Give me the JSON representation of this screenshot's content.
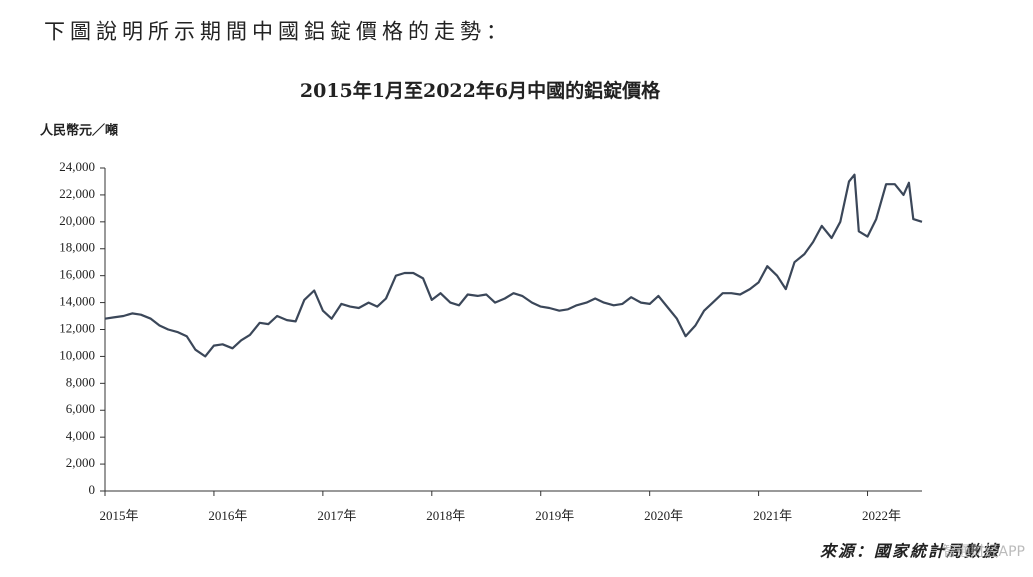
{
  "intro": "下圖說明所示期間中國鋁錠價格的走勢：",
  "watermark": "智通财经APP",
  "chart_data": {
    "type": "line",
    "title": "2015年1月至2022年6月中國的鋁錠價格",
    "y_label": "人民幣元／噸",
    "source": "來源：國家統計局數據",
    "xlim": [
      2015,
      2022.5
    ],
    "xticks": [
      {
        "value": 2015,
        "label": "2015年"
      },
      {
        "value": 2016,
        "label": "2016年"
      },
      {
        "value": 2017,
        "label": "2017年"
      },
      {
        "value": 2018,
        "label": "2018年"
      },
      {
        "value": 2019,
        "label": "2019年"
      },
      {
        "value": 2020,
        "label": "2020年"
      },
      {
        "value": 2021,
        "label": "2021年"
      },
      {
        "value": 2022,
        "label": "2022年"
      }
    ],
    "ylim": [
      0,
      24000
    ],
    "yticks": [
      0,
      {
        "value": 2000,
        "label": "2,000"
      },
      {
        "value": 4000,
        "label": "4,000"
      },
      {
        "value": 6000,
        "label": "6,000"
      },
      {
        "value": 8000,
        "label": "8,000"
      },
      {
        "value": 10000,
        "label": "10,000"
      },
      {
        "value": 12000,
        "label": "12,000"
      },
      {
        "value": 14000,
        "label": "14,000"
      },
      {
        "value": 16000,
        "label": "16,000"
      },
      {
        "value": 18000,
        "label": "18,000"
      },
      {
        "value": 20000,
        "label": "20,000"
      },
      {
        "value": 22000,
        "label": "22,000"
      },
      {
        "value": 24000,
        "label": "24,000"
      }
    ],
    "grid": false,
    "color": "#3b4759",
    "x": [
      2015.0,
      2015.08,
      2015.17,
      2015.25,
      2015.33,
      2015.42,
      2015.5,
      2015.58,
      2015.67,
      2015.75,
      2015.83,
      2015.92,
      2016.0,
      2016.08,
      2016.17,
      2016.25,
      2016.33,
      2016.42,
      2016.5,
      2016.58,
      2016.67,
      2016.75,
      2016.83,
      2016.92,
      2017.0,
      2017.08,
      2017.17,
      2017.25,
      2017.33,
      2017.42,
      2017.5,
      2017.58,
      2017.67,
      2017.75,
      2017.83,
      2017.92,
      2018.0,
      2018.08,
      2018.17,
      2018.25,
      2018.33,
      2018.42,
      2018.5,
      2018.58,
      2018.67,
      2018.75,
      2018.83,
      2018.92,
      2019.0,
      2019.08,
      2019.17,
      2019.25,
      2019.33,
      2019.42,
      2019.5,
      2019.58,
      2019.67,
      2019.75,
      2019.83,
      2019.92,
      2020.0,
      2020.08,
      2020.17,
      2020.25,
      2020.33,
      2020.42,
      2020.5,
      2020.58,
      2020.67,
      2020.75,
      2020.83,
      2020.92,
      2021.0,
      2021.08,
      2021.17,
      2021.25,
      2021.33,
      2021.42,
      2021.5,
      2021.58,
      2021.67,
      2021.75,
      2021.83,
      2021.88,
      2021.92,
      2022.0,
      2022.08,
      2022.17,
      2022.25,
      2022.33,
      2022.38,
      2022.42,
      2022.5
    ],
    "values": [
      12800,
      12900,
      13000,
      13200,
      13100,
      12800,
      12300,
      12000,
      11800,
      11500,
      10500,
      10000,
      10800,
      10900,
      10600,
      11200,
      11600,
      12500,
      12400,
      13000,
      12700,
      12600,
      14200,
      14900,
      13400,
      12800,
      13900,
      13700,
      13600,
      14000,
      13700,
      14300,
      16000,
      16200,
      16200,
      15800,
      14200,
      14700,
      14000,
      13800,
      14600,
      14500,
      14600,
      14000,
      14300,
      14700,
      14500,
      14000,
      13700,
      13600,
      13400,
      13500,
      13800,
      14000,
      14300,
      14000,
      13800,
      13900,
      14400,
      14000,
      13900,
      14500,
      13600,
      12800,
      11500,
      12300,
      13400,
      14000,
      14700,
      14700,
      14600,
      15000,
      15500,
      16700,
      16000,
      15000,
      17000,
      17600,
      18500,
      19700,
      18800,
      20000,
      23000,
      23500,
      19300,
      18900,
      20200,
      22800,
      22800,
      22000,
      22900,
      20200,
      20000
    ]
  }
}
